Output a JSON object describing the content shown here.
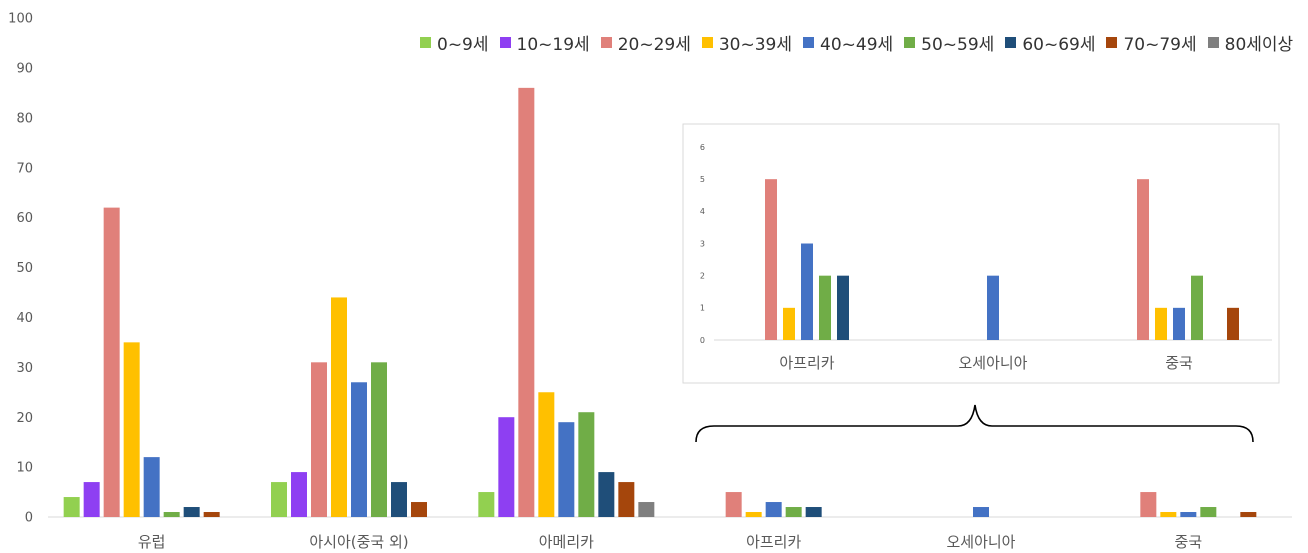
{
  "colors": [
    "#92d050",
    "#8e3ff2",
    "#e0807a",
    "#ffc000",
    "#4472c4",
    "#70ad47",
    "#1f4e79",
    "#a5460c",
    "#7f7f7f"
  ],
  "chart_data": [
    {
      "type": "bar",
      "title": "",
      "xlabel": "",
      "ylabel": "",
      "ylim": [
        0,
        100
      ],
      "yticks": [
        0,
        10,
        20,
        30,
        40,
        50,
        60,
        70,
        80,
        90,
        100
      ],
      "grid": false,
      "legend_position": "top-right",
      "categories": [
        "유럽",
        "아시아(중국 외)",
        "아메리카",
        "아프리카",
        "오세아니아",
        "중국"
      ],
      "series": [
        {
          "name": "0~9세",
          "values": [
            4,
            7,
            5,
            0,
            0,
            0
          ]
        },
        {
          "name": "10~19세",
          "values": [
            7,
            9,
            20,
            0,
            0,
            0
          ]
        },
        {
          "name": "20~29세",
          "values": [
            62,
            31,
            86,
            5,
            0,
            5
          ]
        },
        {
          "name": "30~39세",
          "values": [
            35,
            44,
            25,
            1,
            0,
            1
          ]
        },
        {
          "name": "40~49세",
          "values": [
            12,
            27,
            19,
            3,
            2,
            1
          ]
        },
        {
          "name": "50~59세",
          "values": [
            1,
            31,
            21,
            2,
            0,
            2
          ]
        },
        {
          "name": "60~69세",
          "values": [
            2,
            7,
            9,
            2,
            0,
            0
          ]
        },
        {
          "name": "70~79세",
          "values": [
            1,
            3,
            7,
            0,
            0,
            1
          ]
        },
        {
          "name": "80세이상",
          "values": [
            0,
            0,
            3,
            0,
            0,
            0
          ]
        }
      ]
    },
    {
      "type": "bar",
      "title": "",
      "xlabel": "",
      "ylabel": "",
      "ylim": [
        0,
        6
      ],
      "yticks": [
        0,
        1,
        2,
        3,
        4,
        5,
        6
      ],
      "grid": false,
      "categories": [
        "아프리카",
        "오세아니아",
        "중국"
      ],
      "series": [
        {
          "name": "0~9세",
          "values": [
            0,
            0,
            0
          ]
        },
        {
          "name": "10~19세",
          "values": [
            0,
            0,
            0
          ]
        },
        {
          "name": "20~29세",
          "values": [
            5,
            0,
            5
          ]
        },
        {
          "name": "30~39세",
          "values": [
            1,
            0,
            1
          ]
        },
        {
          "name": "40~49세",
          "values": [
            3,
            2,
            1
          ]
        },
        {
          "name": "50~59세",
          "values": [
            2,
            0,
            2
          ]
        },
        {
          "name": "60~69세",
          "values": [
            2,
            0,
            0
          ]
        },
        {
          "name": "70~79세",
          "values": [
            0,
            0,
            1
          ]
        },
        {
          "name": "80세이상",
          "values": [
            0,
            0,
            0
          ]
        }
      ]
    }
  ]
}
